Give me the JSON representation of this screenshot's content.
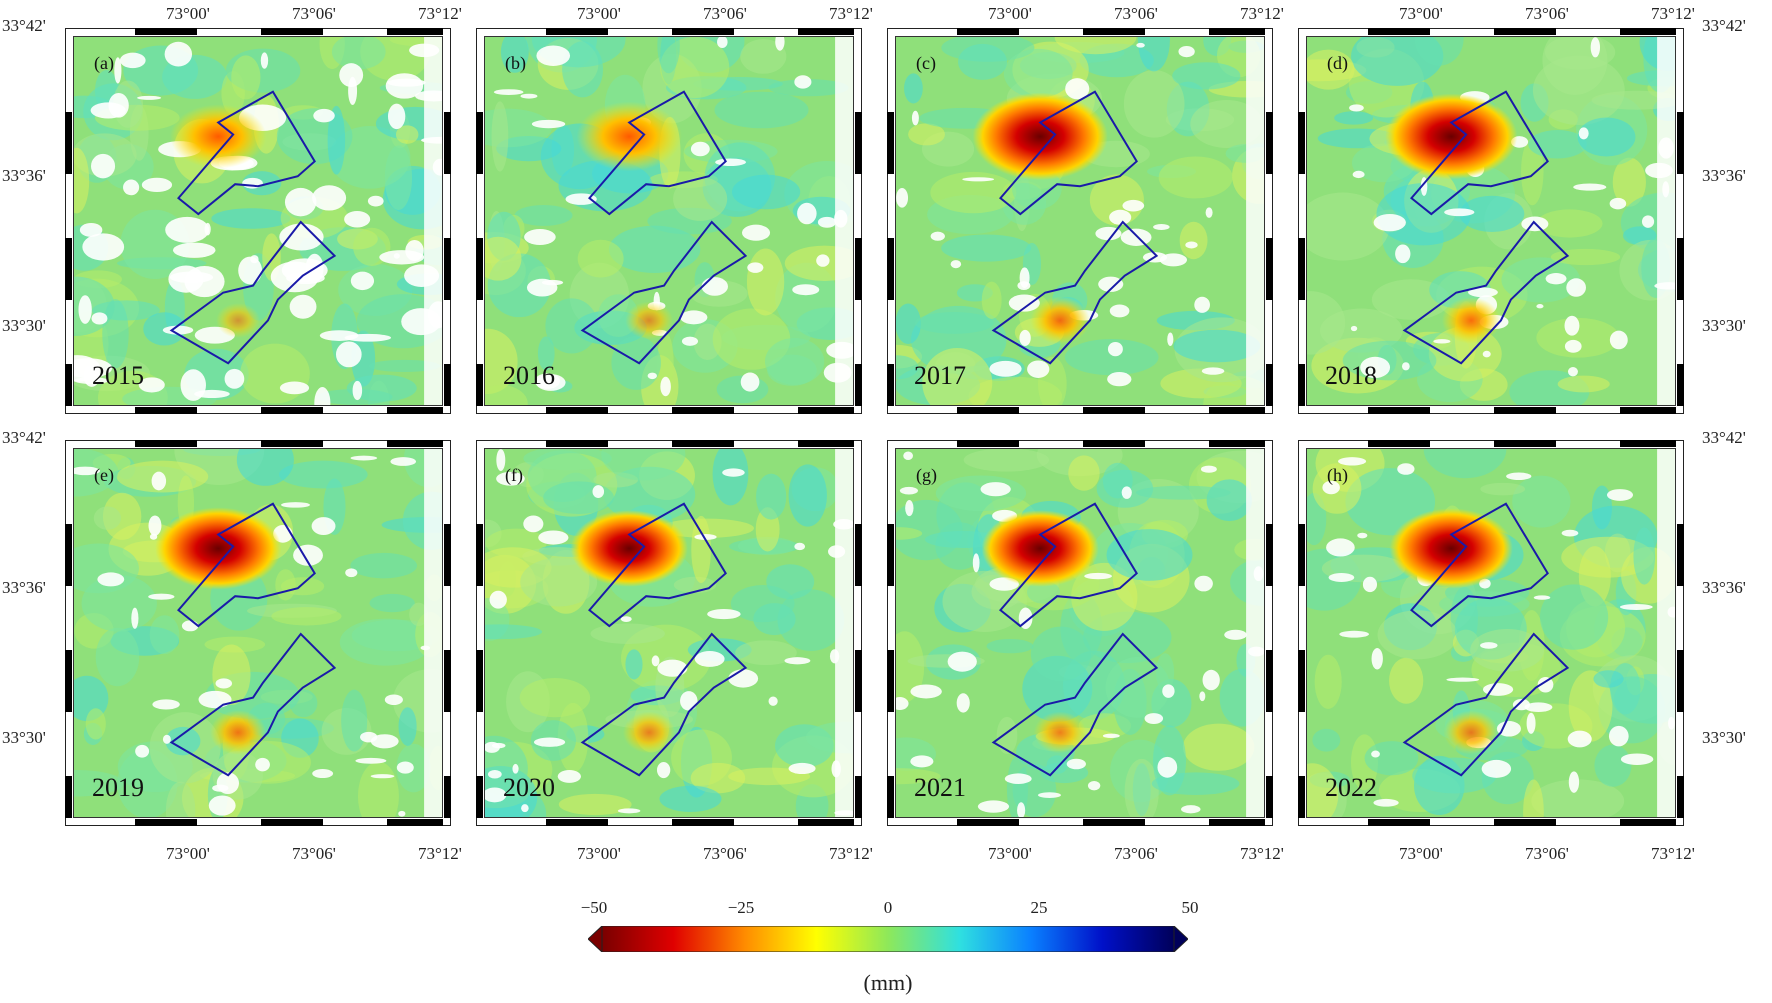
{
  "panels": [
    {
      "letter": "(a)",
      "year": "2015",
      "level": 0.35
    },
    {
      "letter": "(b)",
      "year": "2016",
      "level": 0.5
    },
    {
      "letter": "(c)",
      "year": "2017",
      "level": 1.0
    },
    {
      "letter": "(d)",
      "year": "2018",
      "level": 0.95
    },
    {
      "letter": "(e)",
      "year": "2019",
      "level": 0.85
    },
    {
      "letter": "(f)",
      "year": "2020",
      "level": 0.7
    },
    {
      "letter": "(g)",
      "year": "2021",
      "level": 0.7
    },
    {
      "letter": "(h)",
      "year": "2022",
      "level": 0.8
    }
  ],
  "axes": {
    "lon_ticks": [
      "73°00'",
      "73°06'",
      "73°12'"
    ],
    "lat_ticks": [
      "33°42'",
      "33°36'",
      "33°30'"
    ]
  },
  "colorbar": {
    "ticks": [
      "−50",
      "−25",
      "0",
      "25",
      "50"
    ],
    "unit": "(mm)",
    "range": [
      -50,
      50
    ],
    "colors": [
      "#7a0000",
      "#e00000",
      "#ff8c00",
      "#ffff00",
      "#8ee85a",
      "#2fe0e0",
      "#0a80ff",
      "#0010c8",
      "#00005a"
    ]
  },
  "polygon_color": "#1a1aa8"
}
